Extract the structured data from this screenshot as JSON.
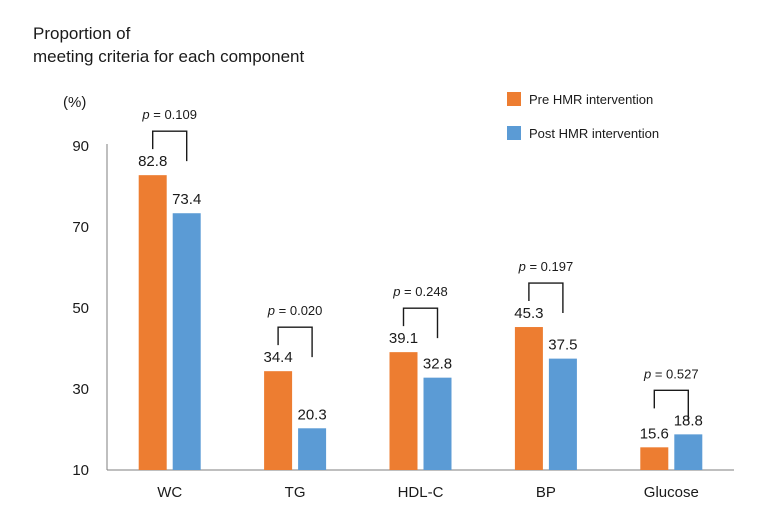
{
  "chart_data": {
    "type": "bar",
    "title_lines": [
      "Proportion of",
      "meeting criteria for each component"
    ],
    "ylabel": "(%)",
    "ylim": [
      10,
      90
    ],
    "yticks": [
      10,
      30,
      50,
      70,
      90
    ],
    "categories": [
      "WC",
      "TG",
      "HDL-C",
      "BP",
      "Glucose"
    ],
    "series": [
      {
        "name": "Pre HMR intervention",
        "color": "#ED7D31",
        "values": [
          82.8,
          34.4,
          39.1,
          45.3,
          15.6
        ]
      },
      {
        "name": "Post HMR intervention",
        "color": "#5B9BD5",
        "values": [
          73.4,
          20.3,
          32.8,
          37.5,
          18.8
        ]
      }
    ],
    "value_labels": [
      [
        "82.8",
        "34.4",
        "39.1",
        "45.3",
        "15.6"
      ],
      [
        "73.4",
        "20.3",
        "32.8",
        "37.5",
        "18.8"
      ]
    ],
    "p_values": [
      "0.109",
      "0.020",
      "0.248",
      "0.197",
      "0.527"
    ],
    "p_prefix": "p",
    "p_equals": " = ",
    "legend_position": "top-right",
    "grid": false
  }
}
